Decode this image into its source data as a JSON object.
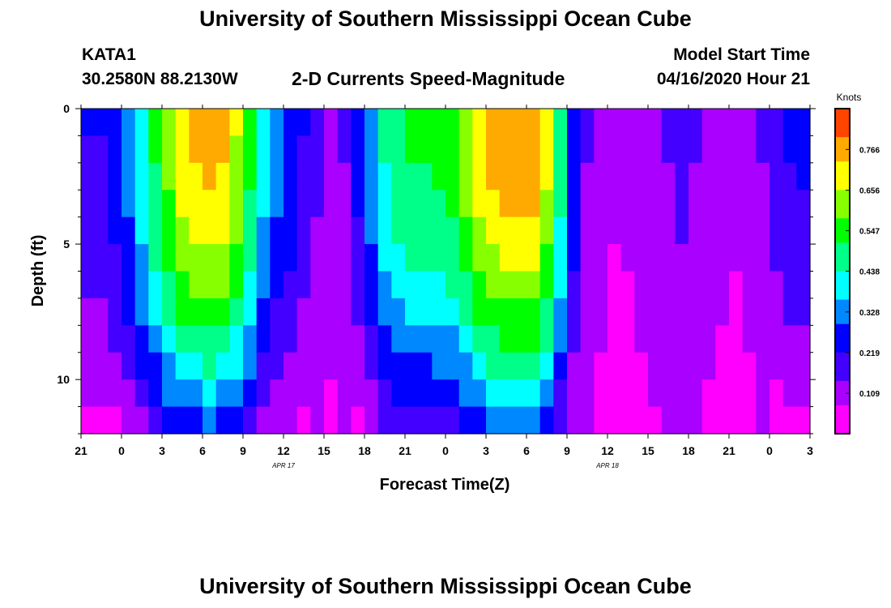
{
  "header": {
    "title": "University of Southern Mississippi Ocean Cube",
    "station_id": "KATA1",
    "station_coords": "30.2580N 88.2130W",
    "chart_title": "2-D Currents Speed-Magnitude",
    "model_label": "Model Start Time",
    "model_time": "04/16/2020 Hour 21"
  },
  "footer": {
    "title": "University of Southern Mississippi Ocean Cube"
  },
  "chart_data": {
    "type": "heatmap",
    "title": "2-D Currents Speed-Magnitude",
    "xlabel": "Forecast Time(Z)",
    "ylabel": "Depth (ft)",
    "x_tick_labels": [
      "21",
      "0",
      "3",
      "6",
      "9",
      "12",
      "15",
      "18",
      "21",
      "0",
      "3",
      "6",
      "9",
      "12",
      "15",
      "18",
      "21",
      "0",
      "3"
    ],
    "x_range_hours": [
      0,
      54
    ],
    "date_labels": [
      {
        "text": "APR 17",
        "hour": 15
      },
      {
        "text": "APR 18",
        "hour": 39
      }
    ],
    "y_tick_labels": [
      "0",
      "5",
      "10"
    ],
    "y_tick_values": [
      0,
      5,
      10
    ],
    "ylim": [
      12,
      0
    ],
    "depth_levels": 12,
    "time_steps": 54,
    "colorbar": {
      "label": "Knots",
      "tick_labels": [
        "0.766",
        "0.656",
        "0.547",
        "0.438",
        "0.328",
        "0.219",
        "0.109"
      ],
      "tick_values": [
        0.766,
        0.656,
        0.547,
        0.438,
        0.328,
        0.219,
        0.109
      ],
      "vmin": 0.0,
      "vmax": 0.876,
      "colors": [
        "#ff00ff",
        "#aa00ff",
        "#4400ff",
        "#0000ff",
        "#0088ff",
        "#00ffff",
        "#00ff88",
        "#00ff00",
        "#88ff00",
        "#ffff00",
        "#ffaa00",
        "#ff4400"
      ]
    },
    "surface_speed_knots": [
      0.22,
      0.22,
      0.26,
      0.33,
      0.42,
      0.52,
      0.62,
      0.7,
      0.75,
      0.76,
      0.74,
      0.66,
      0.54,
      0.4,
      0.32,
      0.28,
      0.22,
      0.17,
      0.13,
      0.16,
      0.25,
      0.35,
      0.45,
      0.5,
      0.52,
      0.52,
      0.53,
      0.56,
      0.63,
      0.7,
      0.76,
      0.78,
      0.79,
      0.78,
      0.68,
      0.48,
      0.28,
      0.16,
      0.12,
      0.09,
      0.1,
      0.12,
      0.14,
      0.16,
      0.18,
      0.16,
      0.13,
      0.11,
      0.1,
      0.12,
      0.16,
      0.2,
      0.23,
      0.24
    ]
  }
}
